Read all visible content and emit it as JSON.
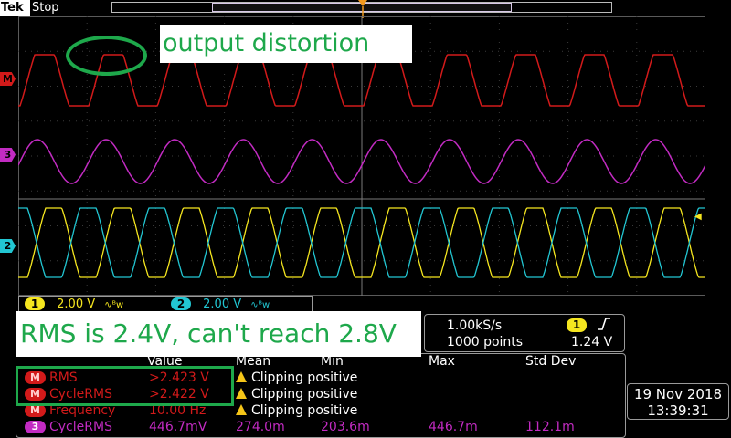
{
  "top_bar": {
    "brand": "Tek",
    "run_state": "Stop",
    "trigger_position_marker": "T"
  },
  "channel_markers": {
    "math": "M",
    "ch3": "3",
    "ch2": "2"
  },
  "annotations": {
    "distortion_note": "output distortion",
    "rms_note": "RMS is 2.4V, can't reach 2.8V"
  },
  "channel_readouts": [
    {
      "channel": "1",
      "volts": "2.00 V",
      "bw_icon": "bandwidth-limit-icon"
    },
    {
      "channel": "2",
      "volts": "2.00 V",
      "bw_icon": "bandwidth-limit-icon"
    }
  ],
  "acquisition": {
    "sample_rate": "1.00kS/s",
    "record_length": "1000 points",
    "trigger_source": "1",
    "trigger_level": "1.24 V",
    "trigger_slope_icon": "rising-edge-icon"
  },
  "measurements": {
    "headers": [
      "Value",
      "Mean",
      "Min",
      "Max",
      "Std Dev"
    ],
    "rows": [
      {
        "source": "M",
        "name": "RMS",
        "value": ">2.423 V",
        "mean": "Clipping positive",
        "min": "",
        "max": "",
        "std": ""
      },
      {
        "source": "M",
        "name": "CycleRMS",
        "value": ">2.422 V",
        "mean": "Clipping positive",
        "min": "",
        "max": "",
        "std": ""
      },
      {
        "source": "M",
        "name": "Frequency",
        "value": "10.00 Hz",
        "mean": "Clipping positive",
        "min": "",
        "max": "",
        "std": ""
      },
      {
        "source": "3",
        "name": "CycleRMS",
        "value": "446.7mV",
        "mean": "274.0m",
        "min": "203.6m",
        "max": "446.7m",
        "std": "112.1m"
      }
    ]
  },
  "datetime": {
    "date": "19 Nov 2018",
    "time": "13:39:31"
  },
  "colors": {
    "math": "#d21a1a",
    "ch1": "#f5e61f",
    "ch2": "#22c6d2",
    "ch3": "#c22bc2",
    "annotation": "#1ea84b",
    "trigger": "#f39a1e"
  }
}
